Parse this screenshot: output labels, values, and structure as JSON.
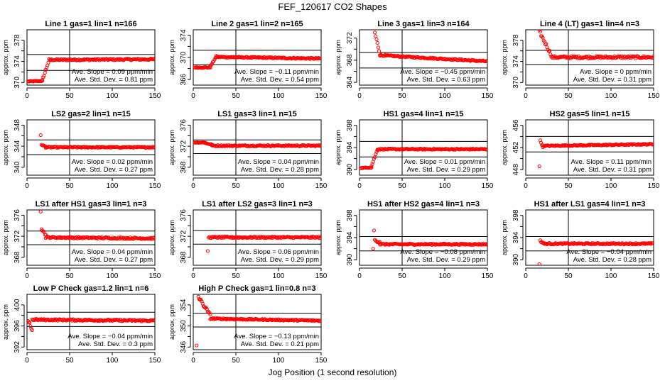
{
  "title": "FEF_120617  CO2 Shapes",
  "xlabel": "Jog Position (1 second resolution)",
  "chart_data": [
    {
      "type": "scatter",
      "title": "Line 1 gas=1 lin=1 n=166",
      "ylabel": "approx. ppm",
      "xlim": [
        0,
        150
      ],
      "ylim": [
        369.5,
        380
      ],
      "yticks": [
        370,
        374,
        378
      ],
      "hlines": [
        372.3,
        375.3
      ],
      "vline": 50,
      "slope": "Ave. Slope = 0.09  ppm/min",
      "stddev": "Ave. Std. Dev. = 0.81  ppm",
      "segments": [
        {
          "x0": 1,
          "x1": 18,
          "y0": 370.2,
          "y1": 370.3,
          "noise": 0.08
        },
        {
          "x0": 18,
          "x1": 26,
          "y0": 370.4,
          "y1": 374.3,
          "noise": 0.15
        },
        {
          "x0": 26,
          "x1": 150,
          "y0": 374.3,
          "y1": 374.4,
          "noise": 0.15
        }
      ]
    },
    {
      "type": "scatter",
      "title": "Line 2 gas=1 lin=2 n=165",
      "ylabel": "approx. ppm",
      "xlim": [
        0,
        150
      ],
      "ylim": [
        365,
        375
      ],
      "yticks": [
        366,
        370,
        374
      ],
      "hlines": [
        368.7,
        371.3
      ],
      "vline": 50,
      "slope": "Ave. Slope = −0.11  ppm/min",
      "stddev": "Ave. Std. Dev. = 0.54  ppm",
      "segments": [
        {
          "x0": 1,
          "x1": 20,
          "y0": 368.2,
          "y1": 368.2,
          "noise": 0.1
        },
        {
          "x0": 20,
          "x1": 27,
          "y0": 368.3,
          "y1": 370.2,
          "noise": 0.1
        },
        {
          "x0": 27,
          "x1": 150,
          "y0": 370.1,
          "y1": 369.8,
          "noise": 0.12
        }
      ]
    },
    {
      "type": "scatter",
      "title": "Line 3 gas=1 lin=3 n=164",
      "ylabel": "approx. ppm",
      "xlim": [
        0,
        150
      ],
      "ylim": [
        363.5,
        373.5
      ],
      "yticks": [
        364,
        368,
        372
      ],
      "hlines": [
        366.6,
        369.4
      ],
      "vline": 50,
      "slope": "Ave. Slope = −0.45  ppm/min",
      "stddev": "Ave. Std. Dev. = 0.63  ppm",
      "segments": [
        {
          "x0": 18,
          "x1": 24,
          "y0": 373,
          "y1": 369.1,
          "noise": 0.2
        },
        {
          "x0": 24,
          "x1": 150,
          "y0": 368.9,
          "y1": 367.8,
          "noise": 0.12
        }
      ]
    },
    {
      "type": "scatter",
      "title": "Line 4 (LT) gas=1 lin=4 n=3",
      "ylabel": "approx. ppm",
      "xlim": [
        0,
        150
      ],
      "ylim": [
        369.5,
        380
      ],
      "yticks": [
        370,
        374,
        378
      ],
      "hlines": [
        373.4,
        376.1
      ],
      "vline": 50,
      "slope": "Ave. Slope = 0  ppm/min",
      "stddev": "Ave. Std. Dev. = 0.31  ppm",
      "segments": [
        {
          "x0": 15,
          "x1": 30,
          "y0": 380,
          "y1": 375.2,
          "noise": 0.3
        },
        {
          "x0": 30,
          "x1": 150,
          "y0": 374.8,
          "y1": 374.8,
          "noise": 0.22
        }
      ]
    },
    {
      "type": "scatter",
      "title": "LS2 gas=2 lin=1 n=15",
      "ylabel": "approx. ppm",
      "xlim": [
        0,
        150
      ],
      "ylim": [
        338.5,
        349
      ],
      "yticks": [
        340,
        344,
        348
      ],
      "hlines": [
        342.4,
        345.2
      ],
      "vline": 50,
      "slope": "Ave. Slope = 0.02  ppm/min",
      "stddev": "Ave. Std. Dev. = 0.27  ppm",
      "segments": [
        {
          "x0": 16,
          "x1": 16,
          "y0": 346.1,
          "y1": 346.1,
          "noise": 0
        },
        {
          "x0": 17,
          "x1": 22,
          "y0": 344.3,
          "y1": 343.9,
          "noise": 0.1
        },
        {
          "x0": 22,
          "x1": 150,
          "y0": 343.8,
          "y1": 343.8,
          "noise": 0.1
        }
      ]
    },
    {
      "type": "scatter",
      "title": "LS1 gas=3 lin=1 n=15",
      "ylabel": "approx. ppm",
      "xlim": [
        0,
        150
      ],
      "ylim": [
        366.5,
        377
      ],
      "yticks": [
        368,
        372,
        376
      ],
      "hlines": [
        370.6,
        373.2
      ],
      "vline": 50,
      "slope": "Ave. Slope = 0.04  ppm/min",
      "stddev": "Ave. Std. Dev. = 0.28  ppm",
      "segments": [
        {
          "x0": 1,
          "x1": 14,
          "y0": 372.7,
          "y1": 372.7,
          "noise": 0.06
        },
        {
          "x0": 14,
          "x1": 22,
          "y0": 372.6,
          "y1": 372.3,
          "noise": 0.08
        },
        {
          "x0": 22,
          "x1": 150,
          "y0": 372.1,
          "y1": 372.1,
          "noise": 0.12
        }
      ]
    },
    {
      "type": "scatter",
      "title": "HS1 gas=4 lin=1 n=15",
      "ylabel": "approx. ppm",
      "xlim": [
        0,
        150
      ],
      "ylim": [
        389,
        399
      ],
      "yticks": [
        390,
        394,
        398
      ],
      "hlines": [
        392.3,
        395.1
      ],
      "vline": 50,
      "slope": "Ave. Slope = 0.01  ppm/min",
      "stddev": "Ave. Std. Dev. = 0.29  ppm",
      "segments": [
        {
          "x0": 1,
          "x1": 14,
          "y0": 390.3,
          "y1": 390.4,
          "noise": 0.06
        },
        {
          "x0": 14,
          "x1": 21,
          "y0": 390.6,
          "y1": 393.6,
          "noise": 0.15
        },
        {
          "x0": 21,
          "x1": 150,
          "y0": 393.7,
          "y1": 393.7,
          "noise": 0.1
        }
      ]
    },
    {
      "type": "scatter",
      "title": "HS2 gas=5 lin=1 n=15",
      "ylabel": "approx. ppm",
      "xlim": [
        0,
        150
      ],
      "ylim": [
        447,
        457
      ],
      "yticks": [
        448,
        452,
        456
      ],
      "hlines": [
        451.2,
        454.0
      ],
      "vline": 50,
      "slope": "Ave. Slope = 0.11  ppm/min",
      "stddev": "Ave. Std. Dev. = 0.31  ppm",
      "segments": [
        {
          "x0": 16,
          "x1": 16,
          "y0": 448.6,
          "y1": 448.6,
          "noise": 0
        },
        {
          "x0": 17,
          "x1": 20,
          "y0": 453.2,
          "y1": 452.2,
          "noise": 0.15
        },
        {
          "x0": 20,
          "x1": 150,
          "y0": 452.3,
          "y1": 452.6,
          "noise": 0.1
        }
      ]
    },
    {
      "type": "scatter",
      "title": "LS1 after HS1 gas=3 lin=1 n=3",
      "ylabel": "approx. ppm",
      "xlim": [
        0,
        150
      ],
      "ylim": [
        366.5,
        377
      ],
      "yticks": [
        368,
        372,
        376
      ],
      "hlines": [
        370.4,
        373.0
      ],
      "vline": 50,
      "slope": "Ave. Slope = 0.04  ppm/min",
      "stddev": "Ave. Std. Dev. = 0.27  ppm",
      "segments": [
        {
          "x0": 16,
          "x1": 16,
          "y0": 376.7,
          "y1": 376.7,
          "noise": 0
        },
        {
          "x0": 17,
          "x1": 22,
          "y0": 373.5,
          "y1": 372.2,
          "noise": 0.2
        },
        {
          "x0": 22,
          "x1": 150,
          "y0": 371.8,
          "y1": 371.6,
          "noise": 0.15
        }
      ]
    },
    {
      "type": "scatter",
      "title": "LS1 after LS2 gas=3 lin=1 n=3",
      "ylabel": "approx. ppm",
      "xlim": [
        0,
        150
      ],
      "ylim": [
        366.5,
        377
      ],
      "yticks": [
        368,
        372,
        376
      ],
      "hlines": [
        370.5,
        373.1
      ],
      "vline": 50,
      "slope": "Ave. Slope = 0.06  ppm/min",
      "stddev": "Ave. Std. Dev. = 0.29  ppm",
      "segments": [
        {
          "x0": 17,
          "x1": 17,
          "y0": 369.2,
          "y1": 369.2,
          "noise": 0
        },
        {
          "x0": 18,
          "x1": 150,
          "y0": 371.8,
          "y1": 371.8,
          "noise": 0.15
        }
      ]
    },
    {
      "type": "scatter",
      "title": "HS1 after HS2 gas=4 lin=1 n=3",
      "ylabel": "approx. ppm",
      "xlim": [
        0,
        150
      ],
      "ylim": [
        389,
        399
      ],
      "yticks": [
        390,
        394,
        398
      ],
      "hlines": [
        391.6,
        394.2
      ],
      "vline": 50,
      "slope": "Ave. Slope = −0.08  ppm/min",
      "stddev": "Ave. Std. Dev. = 0.29  ppm",
      "segments": [
        {
          "x0": 16,
          "x1": 16,
          "y0": 392.0,
          "y1": 392.0,
          "noise": 0
        },
        {
          "x0": 17,
          "x1": 17,
          "y0": 395.3,
          "y1": 395.3,
          "noise": 0
        },
        {
          "x0": 18,
          "x1": 24,
          "y0": 393.5,
          "y1": 393.2,
          "noise": 0.2
        },
        {
          "x0": 24,
          "x1": 150,
          "y0": 392.8,
          "y1": 392.8,
          "noise": 0.12
        }
      ]
    },
    {
      "type": "scatter",
      "title": "HS1 after LS1 gas=4 lin=1 n=3",
      "ylabel": "approx. ppm",
      "xlim": [
        0,
        150
      ],
      "ylim": [
        389,
        399
      ],
      "yticks": [
        390,
        394,
        398
      ],
      "hlines": [
        391.6,
        394.2
      ],
      "vline": 50,
      "slope": "Ave. Slope = −0.04  ppm/min",
      "stddev": "Ave. Std. Dev. = 0.28  ppm",
      "segments": [
        {
          "x0": 16,
          "x1": 16,
          "y0": 389.2,
          "y1": 389.2,
          "noise": 0
        },
        {
          "x0": 17,
          "x1": 22,
          "y0": 393.4,
          "y1": 392.9,
          "noise": 0.15
        },
        {
          "x0": 22,
          "x1": 150,
          "y0": 392.9,
          "y1": 392.9,
          "noise": 0.12
        }
      ]
    },
    {
      "type": "scatter",
      "title": "Low P Check gas=1.2 lin=1 n=6",
      "ylabel": "approx. ppm",
      "xlim": [
        0,
        150
      ],
      "ylim": [
        391.5,
        402
      ],
      "yticks": [
        392,
        396,
        400
      ],
      "hlines": [
        395.9,
        398.6
      ],
      "vline": 50,
      "slope": "Ave. Slope = −0.04  ppm/min",
      "stddev": "Ave. Std. Dev. = 0.3  ppm",
      "segments": [
        {
          "x0": 1,
          "x1": 6,
          "y0": 397.6,
          "y1": 395.2,
          "noise": 0.8
        },
        {
          "x0": 6,
          "x1": 150,
          "y0": 397.2,
          "y1": 397.0,
          "noise": 0.15
        }
      ]
    },
    {
      "type": "scatter",
      "title": "High P Check gas=1 lin=0.8 n=3",
      "ylabel": "approx. ppm",
      "xlim": [
        0,
        150
      ],
      "ylim": [
        345.5,
        356
      ],
      "yticks": [
        346,
        350,
        354
      ],
      "hlines": [
        349.8,
        352.4
      ],
      "vline": 50,
      "slope": "Ave. Slope = −0.13  ppm/min",
      "stddev": "Ave. Std. Dev. = 0.21  ppm",
      "segments": [
        {
          "x0": 4,
          "x1": 4,
          "y0": 346.3,
          "y1": 346.3,
          "noise": 0
        },
        {
          "x0": 6,
          "x1": 20,
          "y0": 355.5,
          "y1": 352.0,
          "noise": 0.3
        },
        {
          "x0": 20,
          "x1": 150,
          "y0": 351.4,
          "y1": 351.0,
          "noise": 0.12
        }
      ]
    }
  ]
}
